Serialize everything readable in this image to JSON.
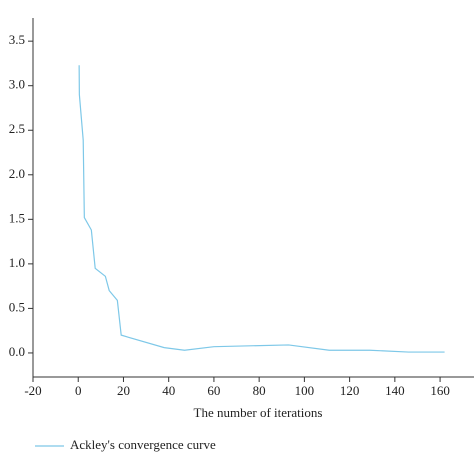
{
  "chart_data": {
    "type": "line",
    "x_label": "The number of iterations",
    "x": [
      0.4,
      0.5,
      2.2,
      2.7,
      5.8,
      7.5,
      12,
      13.7,
      17.3,
      19,
      38,
      47,
      60,
      76,
      93,
      111,
      129,
      146,
      162
    ],
    "series": [
      {
        "name": "Ackley's convergence curve",
        "color": "#7ec8e8",
        "values": [
          3.23,
          2.9,
          2.39,
          1.52,
          1.38,
          0.95,
          0.86,
          0.7,
          0.59,
          0.2,
          0.06,
          0.03,
          0.07,
          0.08,
          0.09,
          0.03,
          0.03,
          0.01,
          0.01
        ]
      }
    ],
    "xlim": [
      -20,
      175
    ],
    "xticks": [
      -20,
      0,
      20,
      40,
      60,
      80,
      100,
      120,
      140,
      160
    ],
    "ylim": [
      -0.27,
      3.76
    ],
    "yticks": [
      {
        "value": 0,
        "label": "0.0"
      },
      0.5,
      {
        "value": 1,
        "label": "1.0"
      },
      1.5,
      {
        "value": 2,
        "label": "2.0"
      },
      2.5,
      {
        "value": 3,
        "label": "3.0"
      },
      3.5
    ],
    "legend": "bottom-left"
  }
}
